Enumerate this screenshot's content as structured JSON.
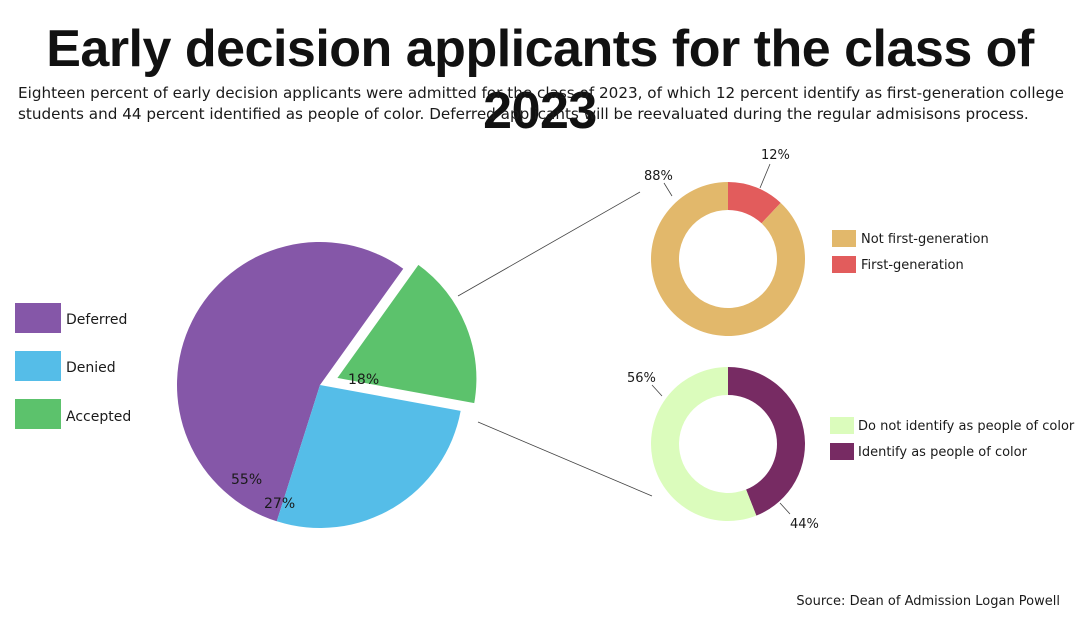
{
  "title": "Early decision applicants for the class of 2023",
  "subtitle": [
    "Eighteen percent of early decision applicants were admitted for the class of 2023, of which 12 percent identify as first-generation college",
    "students and 44 percent  identified as people of color. Deferred applicants will be reevaluated during the regular admisisons process."
  ],
  "source": "Source: Dean of Admission Logan Powell",
  "chart_data": [
    {
      "type": "pie",
      "categories": [
        "Deferred",
        "Denied",
        "Accepted"
      ],
      "values": [
        55,
        27,
        18
      ],
      "labels": [
        "55%",
        "27%",
        "18%"
      ],
      "colors": [
        "#8557a8",
        "#55bde8",
        "#5cc26c"
      ],
      "exploded": "Accepted",
      "legend": "left"
    },
    {
      "type": "pie",
      "style": "donut",
      "categories": [
        "Not first-generation",
        "First-generation"
      ],
      "values": [
        88,
        12
      ],
      "labels": [
        "88%",
        "12%"
      ],
      "colors": [
        "#e2b86b",
        "#e25c5c"
      ],
      "legend": "right"
    },
    {
      "type": "pie",
      "style": "donut",
      "categories": [
        "Do not identify as people of color",
        "Identify as people of color"
      ],
      "values": [
        56,
        44
      ],
      "labels": [
        "56%",
        "44%"
      ],
      "colors": [
        "#dbfcbc",
        "#772b63"
      ],
      "legend": "right"
    }
  ]
}
